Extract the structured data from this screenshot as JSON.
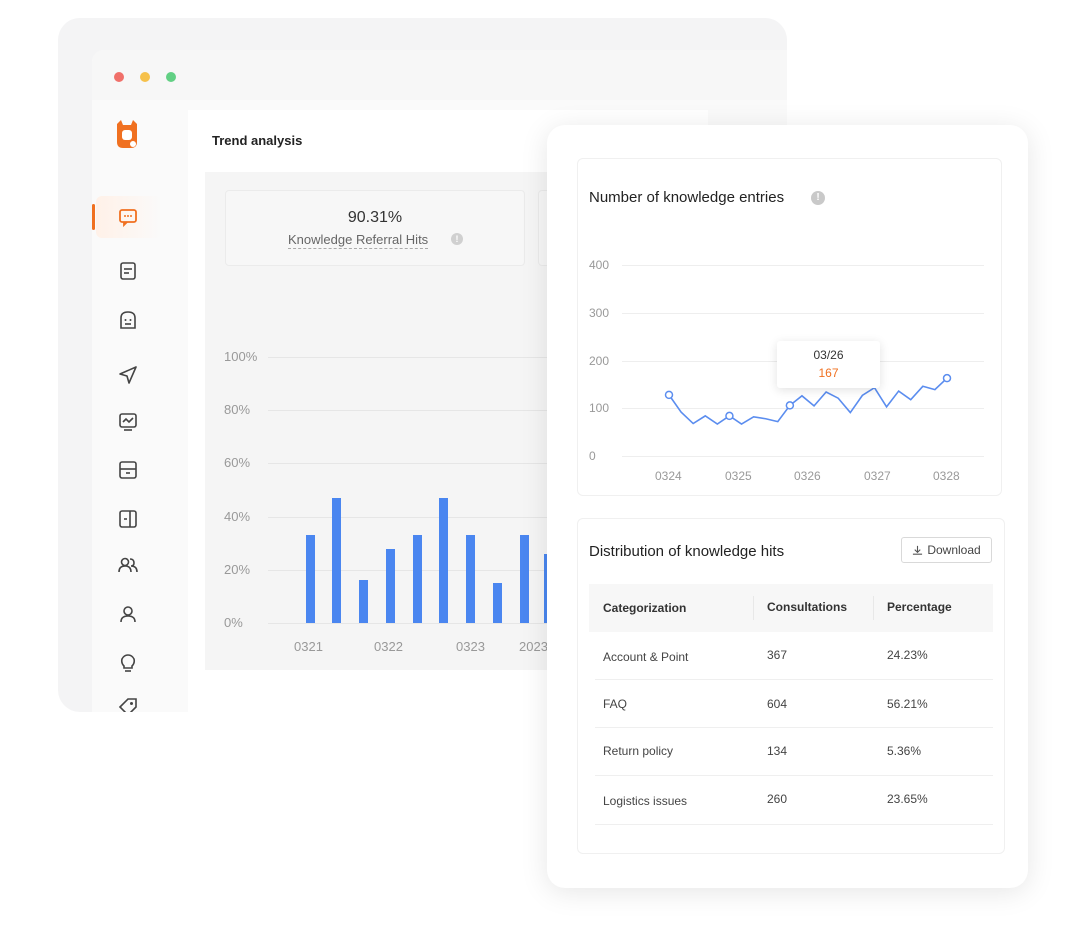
{
  "app": {
    "window_controls": [
      "close",
      "minimize",
      "maximize"
    ],
    "logo_icon": "bot-logo-icon",
    "accent_color": "#f07020"
  },
  "sidebar": {
    "items": [
      {
        "icon": "chat-icon",
        "active": true
      },
      {
        "icon": "document-icon",
        "active": false
      },
      {
        "icon": "robot-icon",
        "active": false
      },
      {
        "icon": "send-icon",
        "active": false
      },
      {
        "icon": "monitor-chart-icon",
        "active": false
      },
      {
        "icon": "inbox-icon",
        "active": false
      },
      {
        "icon": "panel-icon",
        "active": false
      },
      {
        "icon": "users-icon",
        "active": false
      },
      {
        "icon": "user-icon",
        "active": false
      },
      {
        "icon": "lightbulb-icon",
        "active": false
      },
      {
        "icon": "tag-icon",
        "active": false
      }
    ]
  },
  "trend": {
    "title": "Trend analysis",
    "stat_value": "90.31%",
    "stat_label": "Knowledge Referral Hits",
    "info_glyph": "!"
  },
  "bar_chart": {
    "type": "bar",
    "y_ticks": [
      "100%",
      "80%",
      "60%",
      "40%",
      "20%",
      "0%"
    ],
    "x_ticks": [
      "0321",
      "0322",
      "0323",
      "2023"
    ],
    "ylim": [
      0,
      100
    ],
    "bar_color": "#4a86f0",
    "values": [
      33,
      47,
      16,
      28,
      33,
      47,
      33,
      15,
      33,
      26
    ]
  },
  "knowledge_entries": {
    "title": "Number of knowledge entries",
    "info_glyph": "!",
    "tooltip": {
      "date": "03/26",
      "value": "167"
    },
    "y_ticks": [
      "400",
      "300",
      "200",
      "100",
      "0"
    ],
    "x_ticks": [
      "0324",
      "0325",
      "0326",
      "0327",
      "0328"
    ],
    "line_color": "#5b8def"
  },
  "distribution": {
    "title": "Distribution of knowledge hits",
    "download_label": "Download",
    "columns": [
      "Categorization",
      "Consultations",
      "Percentage"
    ],
    "rows": [
      [
        "Account & Point",
        "367",
        "24.23%"
      ],
      [
        "FAQ",
        "604",
        "56.21%"
      ],
      [
        "Return policy",
        "134",
        "5.36%"
      ],
      [
        "Logistics issues",
        "260",
        "23.65%"
      ]
    ]
  },
  "chart_data": [
    {
      "type": "bar",
      "title": "",
      "xlabel": "",
      "ylabel": "",
      "ylim": [
        0,
        100
      ],
      "x_ticks": [
        "0321",
        "0322",
        "0323",
        "2023"
      ],
      "values": [
        33,
        47,
        16,
        28,
        33,
        47,
        33,
        15,
        33,
        26
      ]
    },
    {
      "type": "line",
      "title": "Number of knowledge entries",
      "xlabel": "",
      "ylabel": "",
      "ylim": [
        0,
        400
      ],
      "x_ticks": [
        "0324",
        "0325",
        "0326",
        "0327",
        "0328"
      ],
      "values": [
        128,
        92,
        68,
        84,
        67,
        84,
        67,
        82,
        78,
        72,
        106,
        126,
        105,
        134,
        121,
        91,
        127,
        143,
        103,
        136,
        118,
        146,
        139,
        163
      ]
    }
  ]
}
